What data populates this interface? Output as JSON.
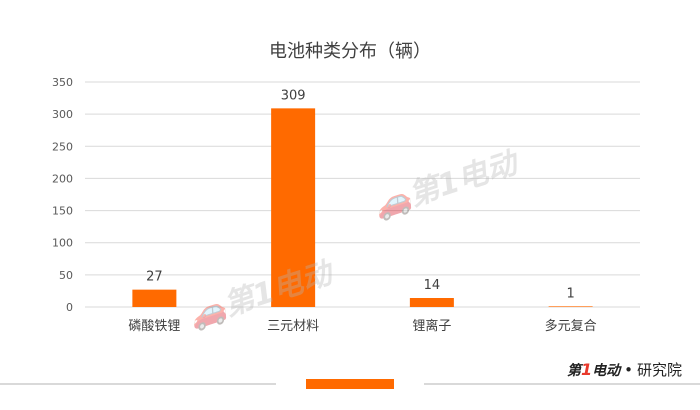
{
  "chart_data": {
    "type": "bar",
    "title": "电池种类分布（辆）",
    "categories": [
      "磷酸铁锂",
      "三元材料",
      "锂离子",
      "多元复合"
    ],
    "values": [
      27,
      309,
      14,
      1
    ],
    "ylim": [
      0,
      350
    ],
    "yticks": [
      0,
      50,
      100,
      150,
      200,
      250,
      300,
      350
    ],
    "grid": true,
    "bar_color": "#ff6a00",
    "xlabel": "",
    "ylabel": ""
  },
  "brand": {
    "logo_prefix": "第",
    "logo_one": "1",
    "logo_suffix": "电动",
    "separator": "•",
    "name": "研究院"
  }
}
